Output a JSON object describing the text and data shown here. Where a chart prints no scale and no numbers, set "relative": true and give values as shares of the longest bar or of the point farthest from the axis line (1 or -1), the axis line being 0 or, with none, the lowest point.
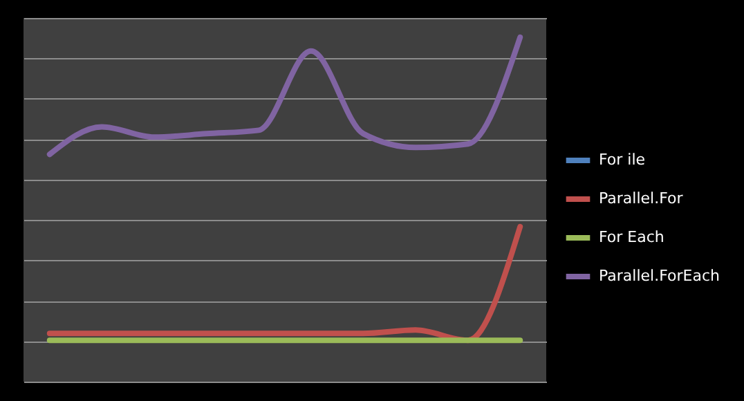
{
  "chart_data": {
    "type": "line",
    "relative": true,
    "grid": true,
    "legend": "right",
    "line_style": "solid",
    "categories": [
      null,
      null,
      null,
      null,
      null,
      null,
      null,
      null,
      null,
      null
    ],
    "series": [
      {
        "name": "For ile",
        "color": "#4f81bd",
        "values": [
          null,
          null,
          null,
          null,
          null,
          null,
          null,
          null,
          null,
          null
        ]
      },
      {
        "name": "Parallel.For",
        "color": "#c0504d",
        "values": [
          0.14,
          0.14,
          0.14,
          0.14,
          0.14,
          0.14,
          0.14,
          0.15,
          0.12,
          0.45
        ]
      },
      {
        "name": "For Each",
        "color": "#9bbb59",
        "values": [
          0.12,
          0.12,
          0.12,
          0.12,
          0.12,
          0.12,
          0.12,
          0.12,
          0.12,
          0.12
        ]
      },
      {
        "name": "Parallel.ForEach",
        "color": "#8064a2",
        "values": [
          0.66,
          0.74,
          0.71,
          0.72,
          0.73,
          0.96,
          0.72,
          0.68,
          0.69,
          1
        ]
      }
    ]
  }
}
